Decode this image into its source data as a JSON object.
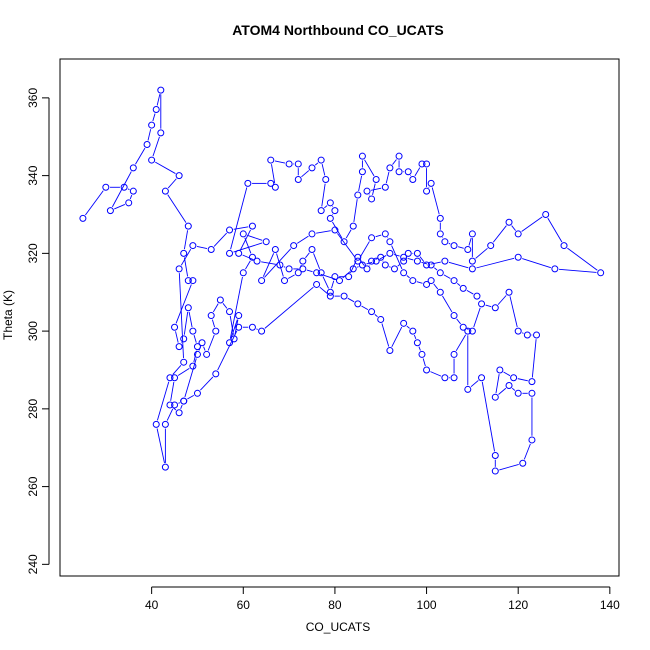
{
  "chart_data": {
    "type": "line",
    "title": "ATOM4 Northbound CO_UCATS",
    "xlabel": "CO_UCATS",
    "ylabel": "Theta (K)",
    "xlim": [
      20,
      142
    ],
    "ylim": [
      237,
      370
    ],
    "x_ticks": [
      40,
      60,
      80,
      100,
      120,
      140
    ],
    "y_ticks": [
      240,
      260,
      280,
      300,
      320,
      340,
      360
    ],
    "grid": false,
    "legend": "none",
    "series_color": "#0000ff",
    "line_style": "b (lines with gaps, open circle markers)",
    "series": [
      {
        "values": [
          [
            25,
            329
          ],
          [
            30,
            337
          ],
          [
            34,
            337
          ],
          [
            36,
            336
          ],
          [
            35,
            333
          ],
          [
            31,
            331
          ],
          [
            36,
            342
          ],
          [
            39,
            348
          ],
          [
            40,
            353
          ],
          [
            41,
            357
          ],
          [
            42,
            362
          ],
          [
            42,
            351
          ],
          [
            40,
            344
          ],
          [
            46,
            340
          ],
          [
            43,
            336
          ],
          [
            48,
            327
          ],
          [
            47,
            320
          ],
          [
            48,
            313
          ],
          [
            49,
            313
          ],
          [
            45,
            301
          ],
          [
            46,
            296
          ],
          [
            47,
            298
          ],
          [
            48,
            306
          ],
          [
            49,
            300
          ],
          [
            50,
            296
          ],
          [
            49,
            291
          ],
          [
            45,
            288
          ],
          [
            44,
            281
          ],
          [
            46,
            279
          ],
          [
            47,
            282
          ],
          [
            50,
            294
          ],
          [
            51,
            297
          ],
          [
            52,
            294
          ],
          [
            54,
            300
          ],
          [
            53,
            304
          ],
          [
            55,
            308
          ],
          [
            57,
            305
          ],
          [
            58,
            298
          ],
          [
            59,
            304
          ],
          [
            57,
            297
          ],
          [
            60,
            315
          ],
          [
            62,
            319
          ],
          [
            60,
            325
          ],
          [
            65,
            323
          ],
          [
            57,
            320
          ],
          [
            61,
            338
          ],
          [
            66,
            338
          ],
          [
            67,
            337
          ],
          [
            66,
            344
          ],
          [
            70,
            343
          ],
          [
            72,
            343
          ],
          [
            72,
            339
          ],
          [
            75,
            342
          ],
          [
            77,
            344
          ],
          [
            78,
            339
          ],
          [
            77,
            331
          ],
          [
            79,
            333
          ],
          [
            80,
            331
          ],
          [
            79,
            329
          ],
          [
            82,
            323
          ],
          [
            84,
            327
          ],
          [
            85,
            335
          ],
          [
            86,
            341
          ],
          [
            86,
            345
          ],
          [
            89,
            339
          ],
          [
            88,
            334
          ],
          [
            87,
            336
          ],
          [
            91,
            337
          ],
          [
            92,
            342
          ],
          [
            94,
            345
          ],
          [
            94,
            341
          ],
          [
            96,
            341
          ],
          [
            97,
            339
          ],
          [
            99,
            343
          ],
          [
            100,
            343
          ],
          [
            100,
            336
          ],
          [
            101,
            338
          ],
          [
            103,
            329
          ],
          [
            103,
            325
          ],
          [
            104,
            323
          ],
          [
            106,
            322
          ],
          [
            109,
            321
          ],
          [
            110,
            325
          ],
          [
            110,
            318
          ],
          [
            114,
            322
          ],
          [
            118,
            328
          ],
          [
            120,
            325
          ],
          [
            126,
            330
          ],
          [
            130,
            322
          ],
          [
            138,
            315
          ],
          [
            128,
            316
          ],
          [
            120,
            319
          ],
          [
            110,
            316
          ],
          [
            104,
            318
          ],
          [
            100,
            317
          ],
          [
            98,
            320
          ],
          [
            96,
            320
          ],
          [
            95,
            318
          ],
          [
            93,
            316
          ],
          [
            91,
            317
          ],
          [
            90,
            319
          ],
          [
            88,
            318
          ],
          [
            87,
            316
          ],
          [
            85,
            319
          ],
          [
            83,
            314
          ],
          [
            80,
            314
          ],
          [
            79,
            310
          ],
          [
            77,
            315
          ],
          [
            75,
            321
          ],
          [
            73,
            318
          ],
          [
            72,
            315
          ],
          [
            69,
            313
          ],
          [
            67,
            321
          ],
          [
            64,
            313
          ],
          [
            71,
            322
          ],
          [
            75,
            325
          ],
          [
            80,
            326
          ],
          [
            85,
            318
          ],
          [
            88,
            324
          ],
          [
            91,
            325
          ],
          [
            92,
            323
          ],
          [
            95,
            315
          ],
          [
            97,
            313
          ],
          [
            100,
            312
          ],
          [
            101,
            313
          ],
          [
            103,
            310
          ],
          [
            106,
            304
          ],
          [
            108,
            301
          ],
          [
            110,
            300
          ],
          [
            112,
            307
          ],
          [
            115,
            306
          ],
          [
            118,
            310
          ],
          [
            120,
            300
          ],
          [
            122,
            299
          ],
          [
            124,
            299
          ],
          [
            123,
            287
          ],
          [
            119,
            288
          ],
          [
            116,
            290
          ],
          [
            115,
            283
          ],
          [
            118,
            286
          ],
          [
            120,
            284
          ],
          [
            123,
            284
          ],
          [
            123,
            272
          ],
          [
            121,
            266
          ],
          [
            115,
            264
          ],
          [
            115,
            268
          ],
          [
            112,
            288
          ],
          [
            109,
            285
          ],
          [
            109,
            300
          ],
          [
            106,
            294
          ],
          [
            106,
            288
          ],
          [
            104,
            288
          ],
          [
            100,
            290
          ],
          [
            99,
            294
          ],
          [
            98,
            297
          ],
          [
            97,
            300
          ],
          [
            95,
            302
          ],
          [
            92,
            295
          ],
          [
            90,
            303
          ],
          [
            88,
            305
          ],
          [
            85,
            307
          ],
          [
            82,
            309
          ],
          [
            79,
            309
          ],
          [
            76,
            312
          ],
          [
            64,
            300
          ],
          [
            62,
            301
          ],
          [
            59,
            301
          ],
          [
            54,
            289
          ],
          [
            50,
            284
          ],
          [
            47,
            282
          ],
          [
            45,
            281
          ],
          [
            43,
            276
          ],
          [
            43,
            265
          ],
          [
            41,
            276
          ],
          [
            44,
            288
          ],
          [
            47,
            292
          ],
          [
            46,
            316
          ],
          [
            49,
            322
          ],
          [
            53,
            321
          ],
          [
            57,
            326
          ],
          [
            62,
            327
          ],
          [
            59,
            320
          ],
          [
            63,
            318
          ],
          [
            68,
            317
          ],
          [
            70,
            316
          ],
          [
            73,
            316
          ],
          [
            76,
            315
          ],
          [
            81,
            313
          ],
          [
            84,
            316
          ],
          [
            86,
            317
          ],
          [
            89,
            318
          ],
          [
            92,
            320
          ],
          [
            95,
            319
          ],
          [
            98,
            318
          ],
          [
            101,
            317
          ],
          [
            103,
            315
          ],
          [
            106,
            313
          ],
          [
            108,
            311
          ],
          [
            111,
            309
          ]
        ]
      }
    ]
  }
}
